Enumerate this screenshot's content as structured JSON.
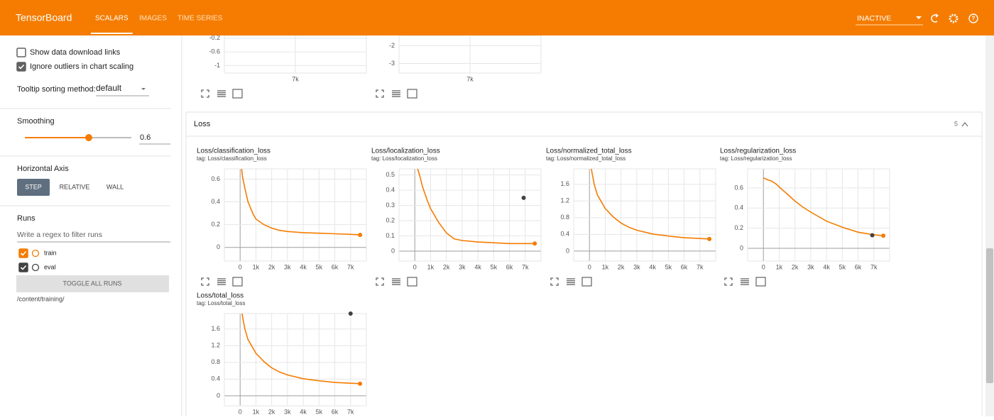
{
  "header": {
    "title": "TensorBoard",
    "tabs": [
      "SCALARS",
      "IMAGES",
      "TIME SERIES"
    ],
    "active_tab": 0,
    "status": "INACTIVE"
  },
  "sidebar": {
    "options": [
      {
        "label": "Show data download links",
        "checked": false
      },
      {
        "label": "Ignore outliers in chart scaling",
        "checked": true
      }
    ],
    "tooltip_label": "Tooltip sorting method:",
    "tooltip_value": "default",
    "smoothing_label": "Smoothing",
    "smoothing": 0.6,
    "horizontal_axis_label": "Horizontal Axis",
    "horizontal_axis_options": [
      "STEP",
      "RELATIVE",
      "WALL"
    ],
    "horizontal_axis_selected": 0,
    "runs_label": "Runs",
    "runs_filter_placeholder": "Write a regex to filter runs",
    "runs": [
      {
        "name": "train",
        "color": "#f57c00",
        "checked": true
      },
      {
        "name": "eval",
        "color": "#424242",
        "checked": true
      }
    ],
    "toggle_all": "TOGGLE ALL RUNS",
    "logdir": "/content/training/"
  },
  "previous_charts": [
    {
      "type": "line",
      "xlim": [
        0,
        14000
      ],
      "ylim": [
        -1.22,
        -0.12
      ],
      "xticks": [
        {
          "value": 7000,
          "label": "7k"
        }
      ],
      "yticks": [
        -0.2,
        -0.6,
        -1
      ]
    },
    {
      "type": "line",
      "xlim": [
        0,
        14000
      ],
      "ylim": [
        -3.54,
        -1.42
      ],
      "xticks": [
        {
          "value": 7000,
          "label": "7k"
        }
      ],
      "yticks": [
        -2,
        -3
      ]
    }
  ],
  "section": {
    "title": "Loss",
    "count": 5
  },
  "charts": [
    {
      "type": "line",
      "title": "Loss/classification_loss",
      "tag": "tag: Loss/classification_loss",
      "xlim": [
        -1000,
        8000
      ],
      "ylim": [
        -0.12,
        0.69
      ],
      "xticks": [
        0,
        {
          "value": 1000,
          "label": "1k"
        },
        {
          "value": 2000,
          "label": "2k"
        },
        {
          "value": 3000,
          "label": "3k"
        },
        {
          "value": 4000,
          "label": "4k"
        },
        {
          "value": 5000,
          "label": "5k"
        },
        {
          "value": 6000,
          "label": "6k"
        },
        {
          "value": 7000,
          "label": "7k"
        }
      ],
      "yticks": [
        0,
        0.2,
        0.4,
        0.6
      ],
      "series": [
        {
          "name": "train",
          "color": "#f57c00",
          "x": [
            0,
            150,
            300,
            500,
            800,
            1000,
            1500,
            2000,
            2500,
            3000,
            4000,
            5000,
            6000,
            7000,
            7600
          ],
          "values": [
            0.8,
            0.62,
            0.52,
            0.4,
            0.3,
            0.25,
            0.2,
            0.17,
            0.15,
            0.14,
            0.13,
            0.125,
            0.12,
            0.115,
            0.11
          ]
        }
      ]
    },
    {
      "type": "line",
      "title": "Loss/localization_loss",
      "tag": "tag: Loss/localization_loss",
      "xlim": [
        -1000,
        8000
      ],
      "ylim": [
        -0.065,
        0.54
      ],
      "xticks": [
        0,
        {
          "value": 1000,
          "label": "1k"
        },
        {
          "value": 2000,
          "label": "2k"
        },
        {
          "value": 3000,
          "label": "3k"
        },
        {
          "value": 4000,
          "label": "4k"
        },
        {
          "value": 5000,
          "label": "5k"
        },
        {
          "value": 6000,
          "label": "6k"
        },
        {
          "value": 7000,
          "label": "7k"
        }
      ],
      "yticks": [
        0,
        0.1,
        0.2,
        0.3,
        0.4,
        0.5
      ],
      "series": [
        {
          "name": "train",
          "color": "#f57c00",
          "x": [
            0,
            150,
            300,
            500,
            800,
            1000,
            1500,
            2000,
            2500,
            3000,
            4000,
            5000,
            6000,
            7000,
            7600
          ],
          "values": [
            0.62,
            0.55,
            0.5,
            0.42,
            0.33,
            0.28,
            0.19,
            0.12,
            0.08,
            0.07,
            0.06,
            0.055,
            0.05,
            0.05,
            0.05
          ]
        },
        {
          "name": "eval",
          "color": "#424242",
          "x": [
            6900
          ],
          "values": [
            0.35
          ]
        }
      ]
    },
    {
      "type": "line",
      "title": "Loss/normalized_total_loss",
      "tag": "tag: Loss/normalized_total_loss",
      "xlim": [
        -1000,
        8000
      ],
      "ylim": [
        -0.24,
        1.97
      ],
      "xticks": [
        0,
        {
          "value": 1000,
          "label": "1k"
        },
        {
          "value": 2000,
          "label": "2k"
        },
        {
          "value": 3000,
          "label": "3k"
        },
        {
          "value": 4000,
          "label": "4k"
        },
        {
          "value": 5000,
          "label": "5k"
        },
        {
          "value": 6000,
          "label": "6k"
        },
        {
          "value": 7000,
          "label": "7k"
        }
      ],
      "yticks": [
        0,
        0.4,
        0.8,
        1.2,
        1.6
      ],
      "series": [
        {
          "name": "train",
          "color": "#f57c00",
          "x": [
            0,
            150,
            300,
            500,
            800,
            1000,
            1500,
            2000,
            2500,
            3000,
            4000,
            5000,
            6000,
            7000,
            7600
          ],
          "values": [
            2.3,
            1.9,
            1.6,
            1.35,
            1.15,
            1.02,
            0.82,
            0.67,
            0.57,
            0.5,
            0.41,
            0.36,
            0.32,
            0.3,
            0.29
          ]
        }
      ]
    },
    {
      "type": "line",
      "title": "Loss/regularization_loss",
      "tag": "tag: Loss/regularization_loss",
      "xlim": [
        -1000,
        8000
      ],
      "ylim": [
        -0.127,
        0.79
      ],
      "xticks": [
        0,
        {
          "value": 1000,
          "label": "1k"
        },
        {
          "value": 2000,
          "label": "2k"
        },
        {
          "value": 3000,
          "label": "3k"
        },
        {
          "value": 4000,
          "label": "4k"
        },
        {
          "value": 5000,
          "label": "5k"
        },
        {
          "value": 6000,
          "label": "6k"
        },
        {
          "value": 7000,
          "label": "7k"
        }
      ],
      "yticks": [
        0,
        0.2,
        0.4,
        0.6
      ],
      "series": [
        {
          "name": "train",
          "color": "#f57c00",
          "x": [
            0,
            150,
            300,
            500,
            800,
            1000,
            1500,
            2000,
            2500,
            3000,
            4000,
            5000,
            6000,
            7000,
            7600
          ],
          "values": [
            0.7,
            0.69,
            0.68,
            0.67,
            0.64,
            0.61,
            0.54,
            0.47,
            0.41,
            0.36,
            0.27,
            0.21,
            0.16,
            0.135,
            0.125
          ]
        },
        {
          "name": "eval",
          "color": "#424242",
          "x": [
            6900
          ],
          "values": [
            0.13
          ]
        }
      ]
    },
    {
      "type": "line",
      "title": "Loss/total_loss",
      "tag": "tag: Loss/total_loss",
      "xlim": [
        -1000,
        8000
      ],
      "ylim": [
        -0.24,
        1.97
      ],
      "xticks": [
        0,
        {
          "value": 1000,
          "label": "1k"
        },
        {
          "value": 2000,
          "label": "2k"
        },
        {
          "value": 3000,
          "label": "3k"
        },
        {
          "value": 4000,
          "label": "4k"
        },
        {
          "value": 5000,
          "label": "5k"
        },
        {
          "value": 6000,
          "label": "6k"
        },
        {
          "value": 7000,
          "label": "7k"
        }
      ],
      "yticks": [
        0,
        0.4,
        0.8,
        1.2,
        1.6
      ],
      "series": [
        {
          "name": "train",
          "color": "#f57c00",
          "x": [
            0,
            150,
            300,
            500,
            800,
            1000,
            1500,
            2000,
            2500,
            3000,
            4000,
            5000,
            6000,
            7000,
            7600
          ],
          "values": [
            2.3,
            1.9,
            1.6,
            1.35,
            1.15,
            1.02,
            0.82,
            0.67,
            0.57,
            0.5,
            0.41,
            0.36,
            0.32,
            0.3,
            0.29
          ]
        },
        {
          "name": "eval",
          "color": "#424242",
          "x": [
            7000
          ],
          "values": [
            1.97
          ]
        }
      ]
    }
  ]
}
